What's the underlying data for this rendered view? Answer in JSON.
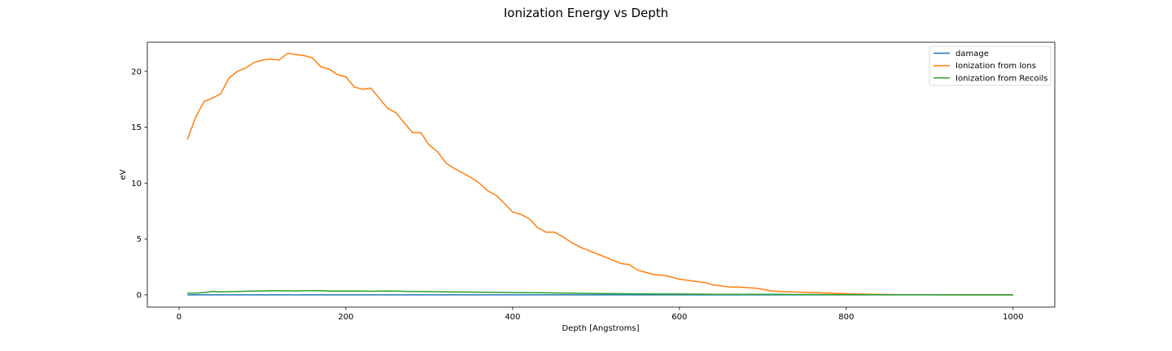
{
  "chart_data": {
    "type": "line",
    "title": "Ionization Energy vs Depth",
    "xlabel": "Depth [Angstroms]",
    "ylabel": "eV",
    "xlim": [
      -38,
      1050
    ],
    "ylim": [
      -1.1,
      22.6
    ],
    "xticks": [
      0,
      200,
      400,
      600,
      800,
      1000
    ],
    "yticks": [
      0,
      5,
      10,
      15,
      20
    ],
    "grid": false,
    "legend_position": "top-right",
    "series": [
      {
        "name": "damage",
        "color": "#1f77b4",
        "x": [
          10,
          100,
          200,
          300,
          400,
          500,
          600,
          700,
          800,
          900,
          1000
        ],
        "y": [
          0,
          0,
          0,
          0,
          0,
          0,
          0,
          0,
          0,
          0,
          0
        ]
      },
      {
        "name": "Ionization from Ions",
        "color": "#ff7f0e",
        "x": [
          10,
          20,
          30,
          40,
          50,
          60,
          70,
          80,
          90,
          100,
          110,
          120,
          130,
          140,
          150,
          160,
          170,
          180,
          190,
          200,
          210,
          220,
          230,
          240,
          250,
          260,
          270,
          280,
          290,
          300,
          310,
          320,
          330,
          340,
          350,
          360,
          370,
          380,
          390,
          400,
          410,
          420,
          430,
          440,
          450,
          460,
          470,
          480,
          490,
          500,
          510,
          520,
          530,
          540,
          550,
          560,
          570,
          580,
          590,
          600,
          610,
          620,
          630,
          640,
          650,
          660,
          670,
          680,
          690,
          700,
          710,
          720,
          730,
          740,
          750,
          760,
          770,
          780,
          790,
          800,
          810,
          820,
          830,
          840,
          850,
          860,
          870,
          880,
          890,
          900,
          910,
          920,
          930,
          940,
          950,
          960,
          970,
          980,
          990,
          1000
        ],
        "y": [
          13.9,
          15.9,
          17.3,
          17.6,
          18.0,
          19.4,
          20.0,
          20.3,
          20.8,
          21.0,
          21.1,
          21.0,
          21.6,
          21.5,
          21.4,
          21.2,
          20.4,
          20.2,
          19.7,
          19.5,
          18.6,
          18.4,
          18.5,
          17.6,
          16.7,
          16.3,
          15.4,
          14.5,
          14.5,
          13.4,
          12.8,
          11.8,
          11.3,
          10.9,
          10.5,
          10.0,
          9.3,
          8.9,
          8.2,
          7.4,
          7.2,
          6.8,
          6.0,
          5.6,
          5.6,
          5.2,
          4.7,
          4.3,
          4.0,
          3.7,
          3.4,
          3.1,
          2.8,
          2.7,
          2.2,
          2.0,
          1.8,
          1.75,
          1.6,
          1.4,
          1.3,
          1.2,
          1.1,
          0.9,
          0.8,
          0.7,
          0.7,
          0.65,
          0.6,
          0.5,
          0.35,
          0.3,
          0.28,
          0.25,
          0.22,
          0.2,
          0.18,
          0.15,
          0.13,
          0.1,
          0.08,
          0.06,
          0.05,
          0.04,
          0.03,
          0.02,
          0.02,
          0.01,
          0.01,
          0.01,
          0.0,
          0.0,
          0.0,
          0.0,
          0.0,
          0.0,
          0.0,
          0.0,
          0.0,
          0.0
        ]
      },
      {
        "name": "Ionization from Recoils",
        "color": "#2ca02c",
        "x": [
          10,
          20,
          30,
          40,
          50,
          60,
          70,
          80,
          90,
          100,
          110,
          120,
          130,
          140,
          150,
          160,
          170,
          180,
          190,
          200,
          210,
          220,
          230,
          240,
          250,
          260,
          270,
          280,
          290,
          300,
          320,
          340,
          360,
          380,
          400,
          420,
          440,
          460,
          480,
          500,
          520,
          540,
          560,
          580,
          600,
          620,
          640,
          660,
          680,
          700,
          720,
          740,
          760,
          780,
          800,
          820,
          840,
          860,
          880,
          900,
          920,
          940,
          960,
          980,
          1000
        ],
        "y": [
          0.15,
          0.15,
          0.2,
          0.3,
          0.27,
          0.28,
          0.3,
          0.32,
          0.33,
          0.35,
          0.37,
          0.36,
          0.36,
          0.35,
          0.37,
          0.37,
          0.38,
          0.33,
          0.34,
          0.34,
          0.34,
          0.33,
          0.32,
          0.34,
          0.33,
          0.33,
          0.31,
          0.3,
          0.3,
          0.29,
          0.27,
          0.25,
          0.24,
          0.22,
          0.2,
          0.19,
          0.18,
          0.16,
          0.14,
          0.12,
          0.11,
          0.09,
          0.08,
          0.07,
          0.07,
          0.06,
          0.05,
          0.05,
          0.04,
          0.04,
          0.04,
          0.03,
          0.03,
          0.02,
          0.02,
          0.02,
          0.01,
          0.01,
          0.01,
          0.01,
          0.01,
          0.0,
          0.0,
          0.0,
          0.0
        ]
      }
    ]
  }
}
